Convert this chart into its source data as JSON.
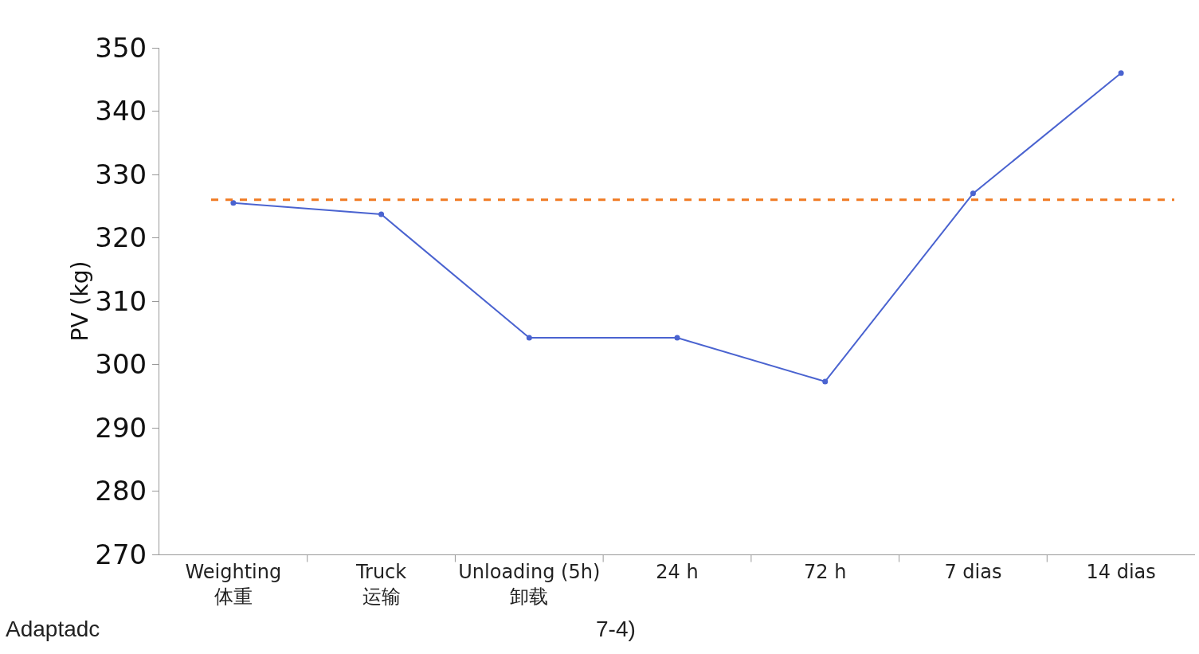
{
  "chart_data": {
    "type": "line",
    "ylabel": "PV (kg)",
    "categories": [
      "Weighting\n体重",
      "Truck\n运输",
      "Unloading (5h)\n卸载",
      "24 h",
      "72 h",
      "7 dias",
      "14 dias"
    ],
    "series": [
      {
        "color": "#4a63d0",
        "values": [
          325.5,
          323.7,
          304.2,
          304.2,
          297.3,
          327,
          346
        ]
      }
    ],
    "ylim": [
      270,
      350
    ],
    "yticks": [
      270,
      280,
      290,
      300,
      310,
      320,
      330,
      340,
      350
    ],
    "ref_lines": [
      {
        "axis": "y",
        "value": 326,
        "color": "#f07a22",
        "line_style": "dashed"
      }
    ],
    "marker": "circle",
    "line_style": "solid",
    "grid": false,
    "legend": false,
    "annotations": [
      "Adaptadc",
      "7-4)"
    ]
  }
}
